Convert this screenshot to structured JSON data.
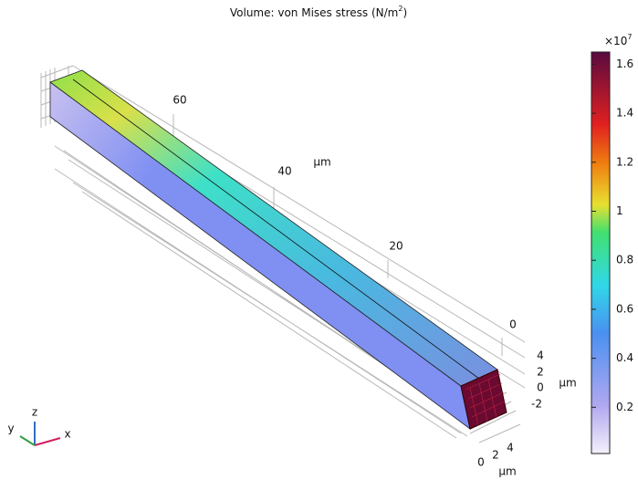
{
  "plot": {
    "title": "Volume: von Mises stress (N/m",
    "title_exponent": "2",
    "title_close": ")",
    "length_ticks": [
      60,
      40,
      20,
      0
    ],
    "length_unit": "µm",
    "height_ticks": [
      4,
      2,
      0,
      -2
    ],
    "height_unit": "µm",
    "width_ticks": [
      0,
      2,
      4
    ],
    "width_unit": "µm",
    "triad": {
      "x": "x",
      "y": "y",
      "z": "z"
    }
  },
  "colorbar": {
    "multiplier": "×10",
    "multiplier_exponent": "7",
    "range": [
      0,
      1.65
    ],
    "ticks": [
      0.2,
      0.4,
      0.6,
      0.8,
      1,
      1.2,
      1.4,
      1.6
    ]
  }
}
